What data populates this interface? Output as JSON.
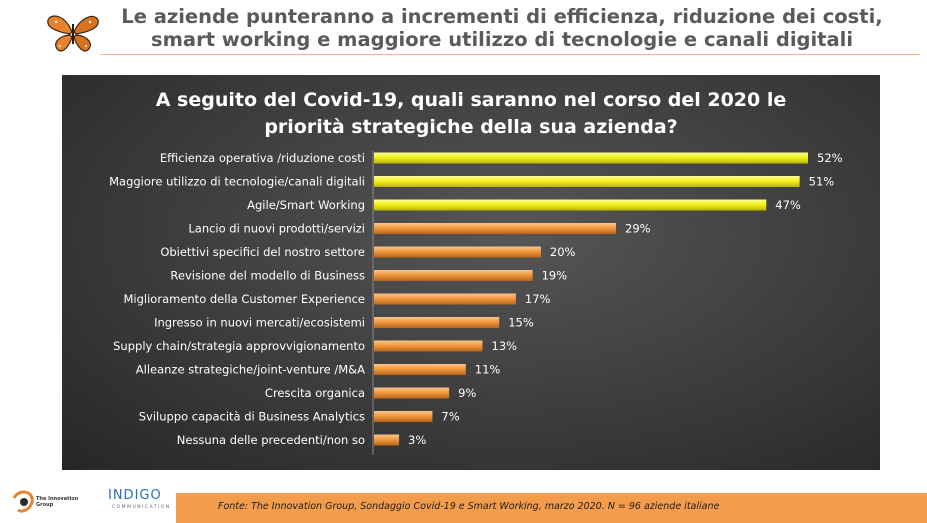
{
  "header": {
    "headline_line1": "Le aziende punteranno a incrementi di efficienza, riduzione dei costi,",
    "headline_line2": "smart working e maggiore utilizzo di tecnologie e canali digitali"
  },
  "chart_data": {
    "type": "bar",
    "orientation": "horizontal",
    "title_line1": "A seguito del Covid-19, quali saranno nel corso del 2020 le",
    "title_line2": "priorità strategiche della sua azienda?",
    "categories": [
      "Efficienza operativa /riduzione costi",
      "Maggiore utilizzo di tecnologie/canali digitali",
      "Agile/Smart Working",
      "Lancio di nuovi prodotti/servizi",
      "Obiettivi specifici del nostro settore",
      "Revisione del modello di Business",
      "Miglioramento della Customer Experience",
      "Ingresso in nuovi mercati/ecosistemi",
      "Supply chain/strategia approvvigionamento",
      "Alleanze strategiche/joint-venture /M&A",
      "Crescita organica",
      "Sviluppo capacità di Business Analytics",
      "Nessuna delle precedenti/non so"
    ],
    "values": [
      52,
      51,
      47,
      29,
      20,
      19,
      17,
      15,
      13,
      11,
      9,
      7,
      3
    ],
    "value_labels": [
      "52%",
      "51%",
      "47%",
      "29%",
      "20%",
      "19%",
      "17%",
      "15%",
      "13%",
      "11%",
      "9%",
      "7%",
      "3%"
    ],
    "highlight_count": 3,
    "xlim": [
      0,
      52
    ],
    "grid": false,
    "colors": {
      "highlight": "#f5f21a",
      "default": "#f29a3e",
      "panel": "#3a3a3a"
    }
  },
  "footer": {
    "source_note": "Fonte: The Innovation Group, Sondaggio Covid-19 e Smart Working, marzo 2020. N = 96  aziende italiane"
  },
  "logos": {
    "left_icon": "butterfly-icon",
    "tig_name": "The Innovation Group",
    "tig_icon": "tig-logo-icon",
    "indigo_name": "INDIGO",
    "indigo_sub": "COMMUNICATION"
  }
}
